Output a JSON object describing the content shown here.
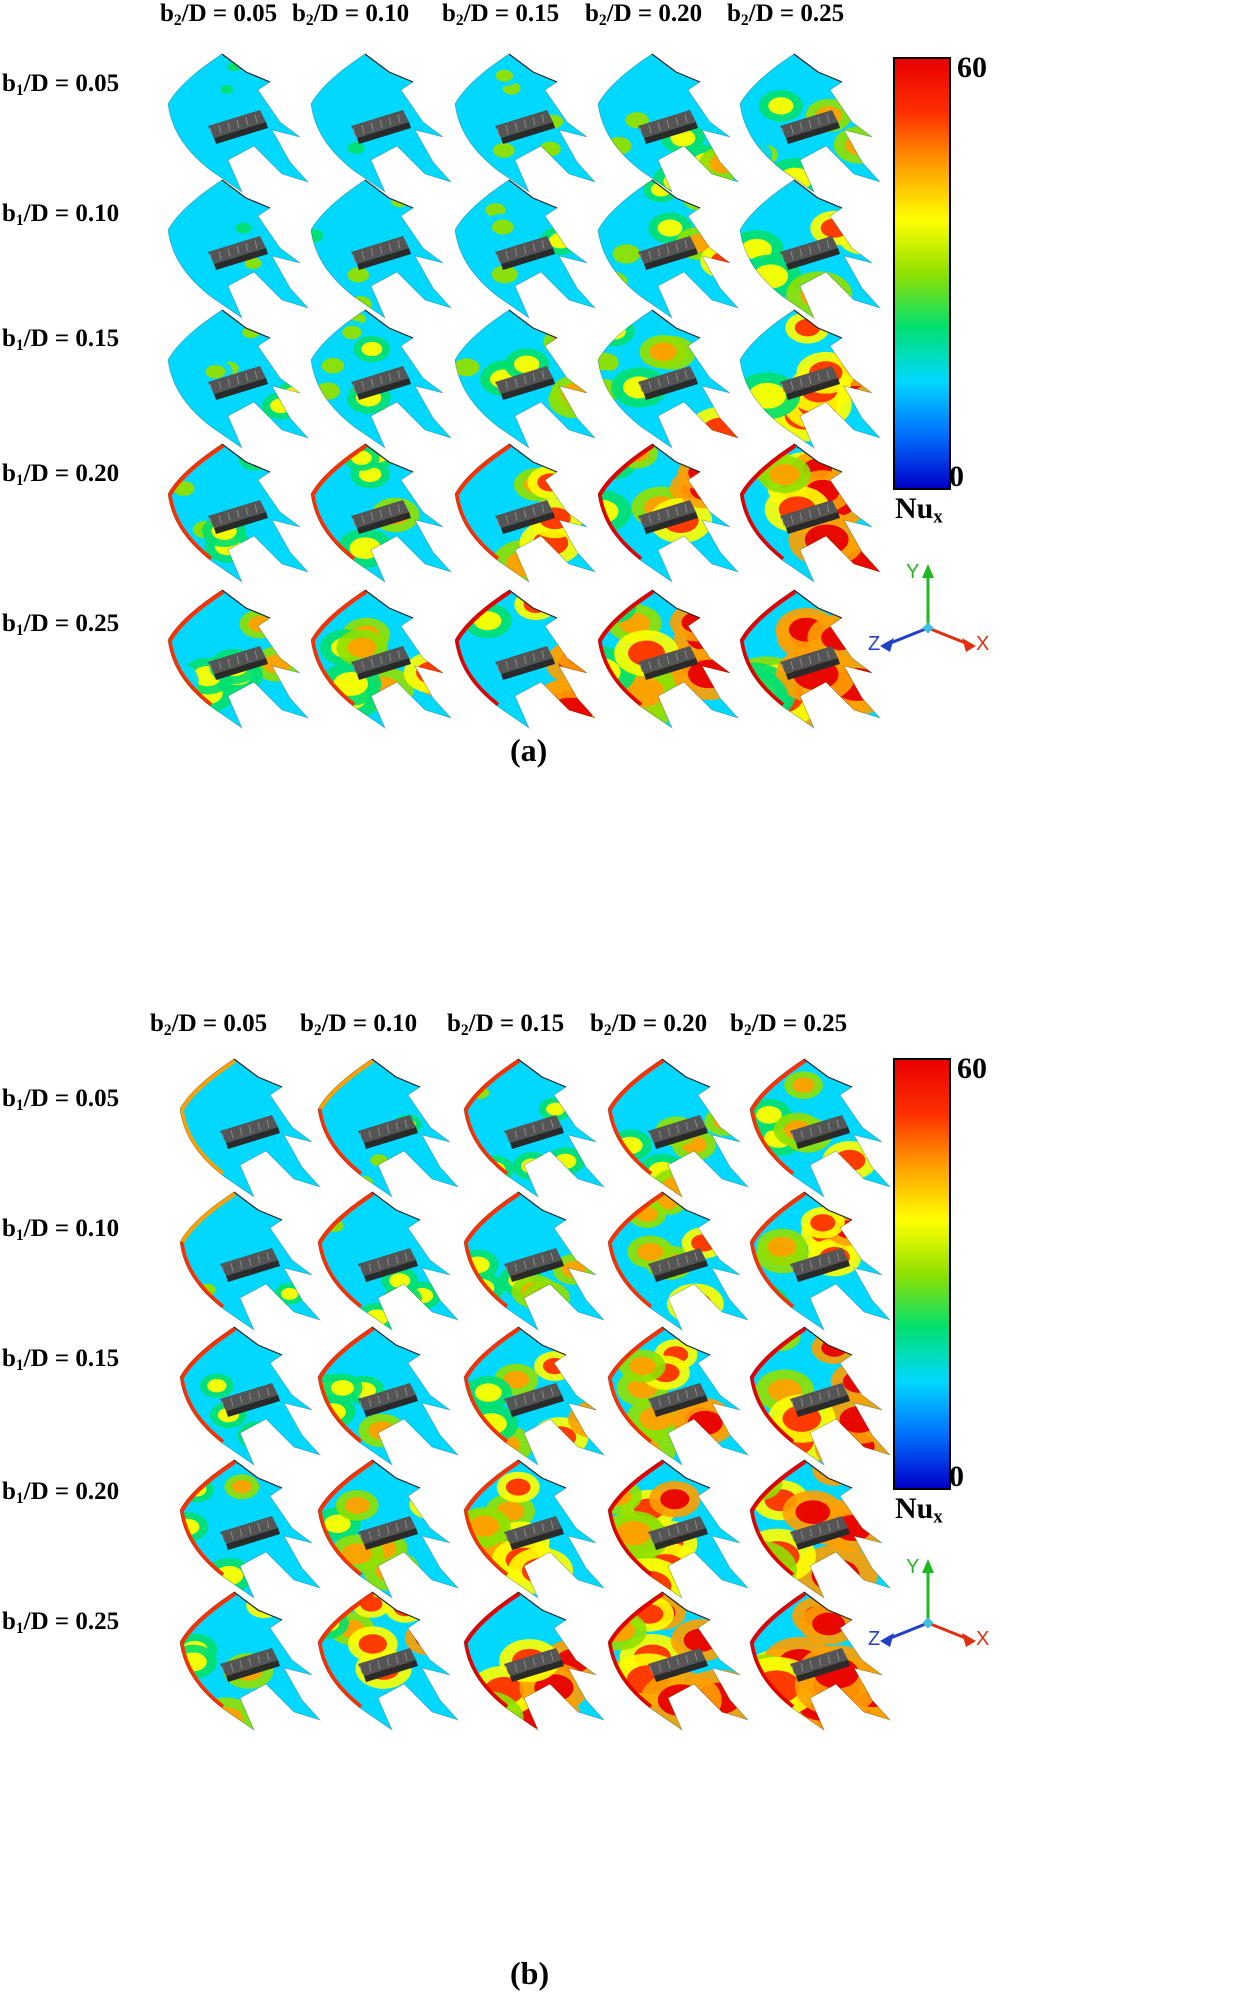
{
  "columns": [
    "0.05",
    "0.10",
    "0.15",
    "0.20",
    "0.25"
  ],
  "rows": [
    "0.05",
    "0.10",
    "0.15",
    "0.20",
    "0.25"
  ],
  "panels": [
    {
      "caption": "(a)",
      "colorbar": {
        "max": "60",
        "min": "0",
        "variable": "Nu",
        "variable_sub": "x"
      }
    },
    {
      "caption": "(b)",
      "colorbar": {
        "max": "60",
        "min": "0",
        "variable": "Nu",
        "variable_sub": "x"
      }
    }
  ],
  "colorbar_colors": [
    "#0000c8",
    "#0070ff",
    "#00d8ff",
    "#00e070",
    "#90e000",
    "#ffff00",
    "#ffa000",
    "#ff3000",
    "#e80000"
  ],
  "axis_labels": {
    "x": "X",
    "y": "Y",
    "z": "Z"
  },
  "axis_colors": {
    "x": "#e03010",
    "y": "#20b820",
    "z": "#2040c8"
  }
}
